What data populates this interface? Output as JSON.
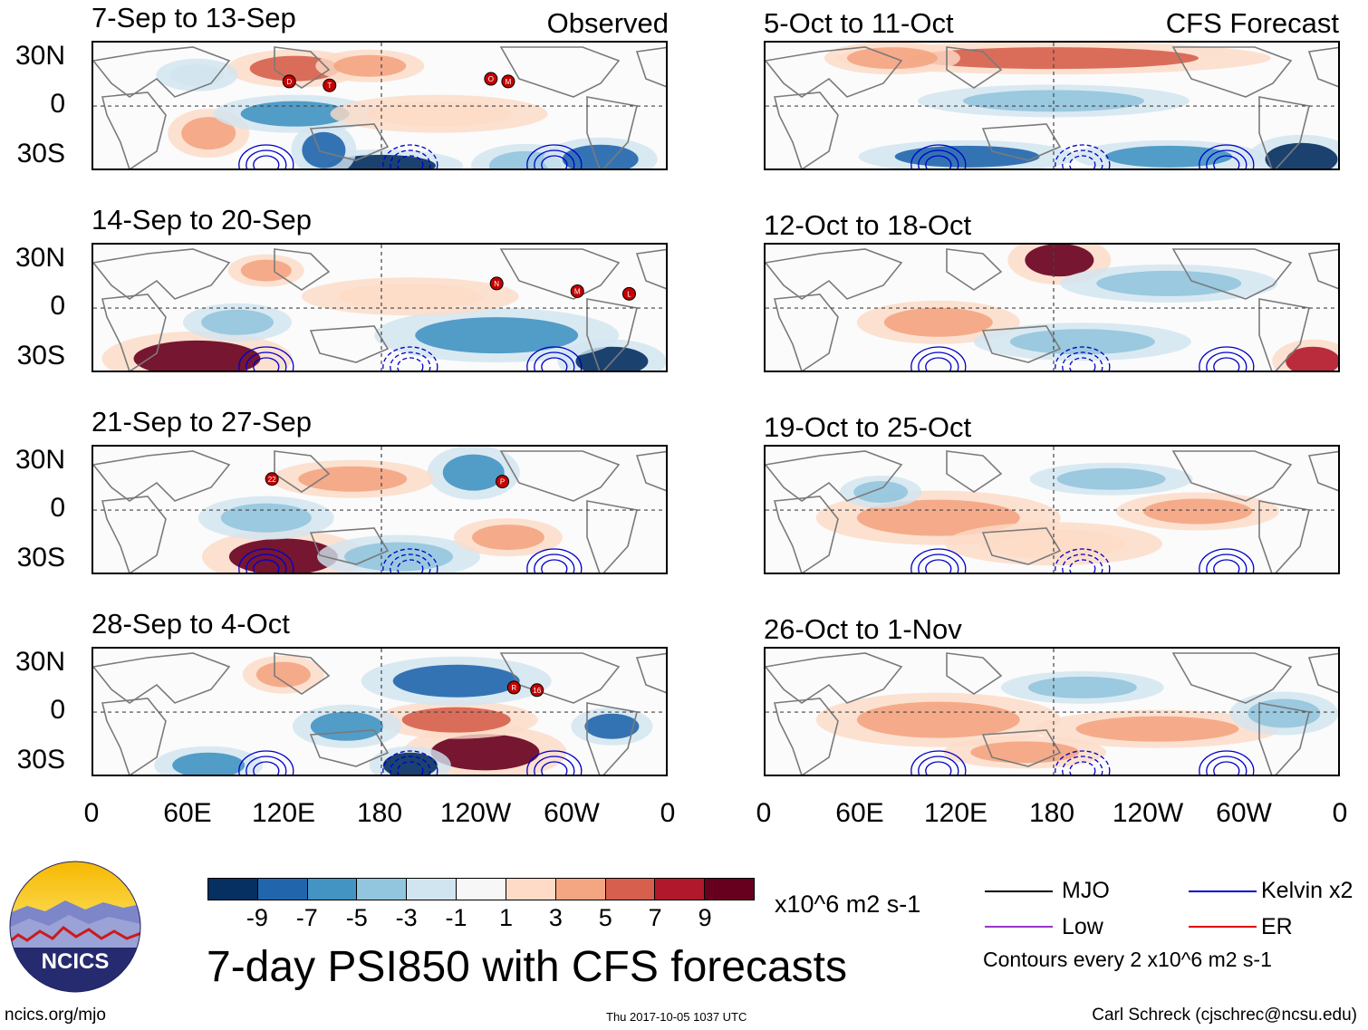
{
  "observed_label": "Observed",
  "forecast_label": "CFS Forecast",
  "lat_labels": [
    "30N",
    "0",
    "30S"
  ],
  "lon_labels": [
    "0",
    "60E",
    "120E",
    "180",
    "120W",
    "60W",
    "0"
  ],
  "panels_left": [
    {
      "title": "7-Sep to 13-Sep",
      "storms": [
        "D",
        "T",
        "O",
        "M"
      ]
    },
    {
      "title": "14-Sep to 20-Sep",
      "storms": [
        "N",
        "M",
        "L"
      ]
    },
    {
      "title": "21-Sep to 27-Sep",
      "storms": [
        "22",
        "P"
      ]
    },
    {
      "title": "28-Sep to 4-Oct",
      "storms": [
        "R",
        "16"
      ]
    }
  ],
  "panels_right": [
    {
      "title": "5-Oct to 11-Oct"
    },
    {
      "title": "12-Oct to 18-Oct"
    },
    {
      "title": "19-Oct to 25-Oct"
    },
    {
      "title": "26-Oct to 1-Nov"
    }
  ],
  "colorbar": {
    "colors": [
      "#053061",
      "#2166ac",
      "#4393c3",
      "#92c5de",
      "#d1e5f0",
      "#f7f7f7",
      "#fddbc7",
      "#f4a582",
      "#d6604d",
      "#b2182b",
      "#67001f"
    ],
    "labels": [
      "-9",
      "-7",
      "-5",
      "-3",
      "-1",
      "1",
      "3",
      "5",
      "7",
      "9"
    ],
    "units": "x10^6 m2 s-1"
  },
  "legend": {
    "mjo": {
      "label": "MJO",
      "color": "#000000"
    },
    "kelvin": {
      "label": "Kelvin x2",
      "color": "#0000cc"
    },
    "low": {
      "label": "Low",
      "color": "#9933cc"
    },
    "er": {
      "label": "ER",
      "color": "#dd0000"
    },
    "contour_note": "Contours every 2 x10^6 m2 s-1"
  },
  "logo_text": "NCICS",
  "main_title": "7-day PSI850 with CFS forecasts",
  "footer_url": "ncics.org/mjo",
  "timestamp": "Thu 2017-10-05 1037 UTC",
  "credit": "Carl Schreck (cjschrec@ncsu.edu)"
}
